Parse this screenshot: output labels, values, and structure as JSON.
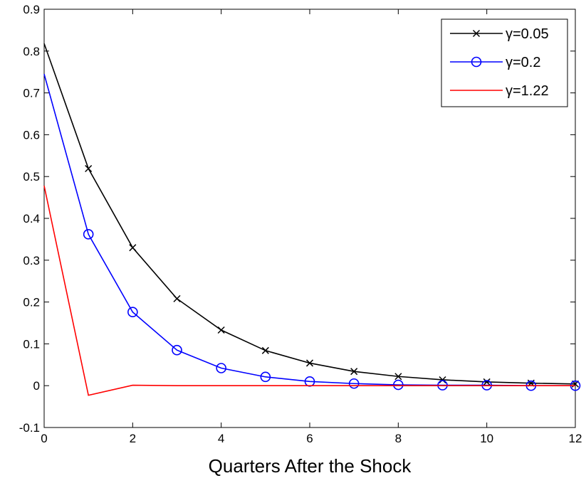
{
  "chart_data": {
    "type": "line",
    "title": "",
    "xlabel": "Quarters After the Shock",
    "ylabel": "",
    "xlim": [
      0,
      12
    ],
    "ylim": [
      -0.1,
      0.9
    ],
    "xticks": [
      0,
      2,
      4,
      6,
      8,
      10,
      12
    ],
    "yticks": [
      -0.1,
      0,
      0.1,
      0.2,
      0.3,
      0.4,
      0.5,
      0.6,
      0.7,
      0.8,
      0.9
    ],
    "xtick_labels": [
      "0",
      "2",
      "4",
      "6",
      "8",
      "10",
      "12"
    ],
    "ytick_labels": [
      "-0.1",
      "0",
      "0.1",
      "0.2",
      "0.3",
      "0.4",
      "0.5",
      "0.6",
      "0.7",
      "0.8",
      "0.9"
    ],
    "grid": false,
    "legend_position": "top-right",
    "x": [
      0,
      1,
      2,
      3,
      4,
      5,
      6,
      7,
      8,
      9,
      10,
      11,
      12
    ],
    "series": [
      {
        "name": "γ=0.05",
        "color": "#000000",
        "marker": "x",
        "marker_indices_start": 1,
        "values": [
          0.818,
          0.519,
          0.33,
          0.208,
          0.133,
          0.084,
          0.054,
          0.034,
          0.022,
          0.014,
          0.009,
          0.006,
          0.004
        ]
      },
      {
        "name": "γ=0.2",
        "color": "#0000ff",
        "marker": "o",
        "marker_indices_start": 1,
        "values": [
          0.745,
          0.362,
          0.176,
          0.085,
          0.042,
          0.021,
          0.01,
          0.005,
          0.002,
          0.001,
          0.001,
          0.0,
          0.0
        ]
      },
      {
        "name": "γ=1.22",
        "color": "#ff0000",
        "marker": "none",
        "marker_indices_start": 1,
        "values": [
          0.478,
          -0.023,
          0.001,
          0.0,
          0.0,
          0.0,
          0.0,
          0.0,
          0.0,
          0.0,
          0.0,
          0.0,
          0.0
        ]
      }
    ]
  }
}
